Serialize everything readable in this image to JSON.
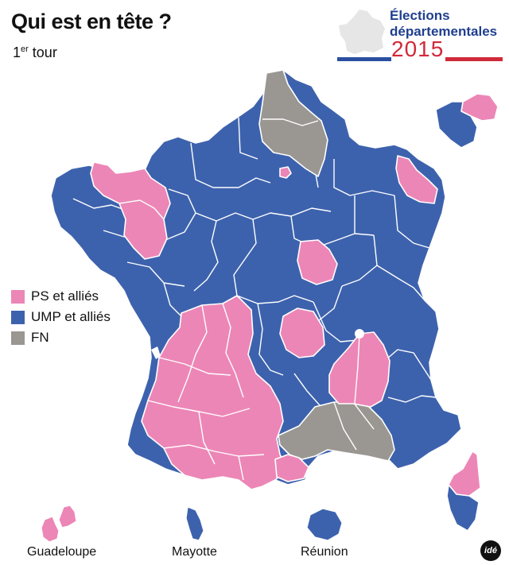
{
  "header": {
    "title": "Qui est en tête ?",
    "subtitle_prefix": "1",
    "subtitle_sup": "er",
    "subtitle_suffix": " tour"
  },
  "logo": {
    "line1": "Élections",
    "line2": "départementales",
    "year": "2015",
    "stripe_colors": [
      "#2a4fa0",
      "#ffffff",
      "#d02a3a"
    ]
  },
  "legend": {
    "items": [
      {
        "label": "PS et alliés",
        "color": "#ec86b6"
      },
      {
        "label": "UMP et alliés",
        "color": "#3d62ad"
      },
      {
        "label": "FN",
        "color": "#9a9792"
      }
    ]
  },
  "colors": {
    "ps": "#ec86b6",
    "ump": "#3d62ad",
    "fn": "#9a9792",
    "border": "#ffffff"
  },
  "overseas": {
    "guadeloupe": "Guadeloupe",
    "mayotte": "Mayotte",
    "reunion": "Réunion"
  },
  "credit": {
    "logo_text": "idé"
  }
}
